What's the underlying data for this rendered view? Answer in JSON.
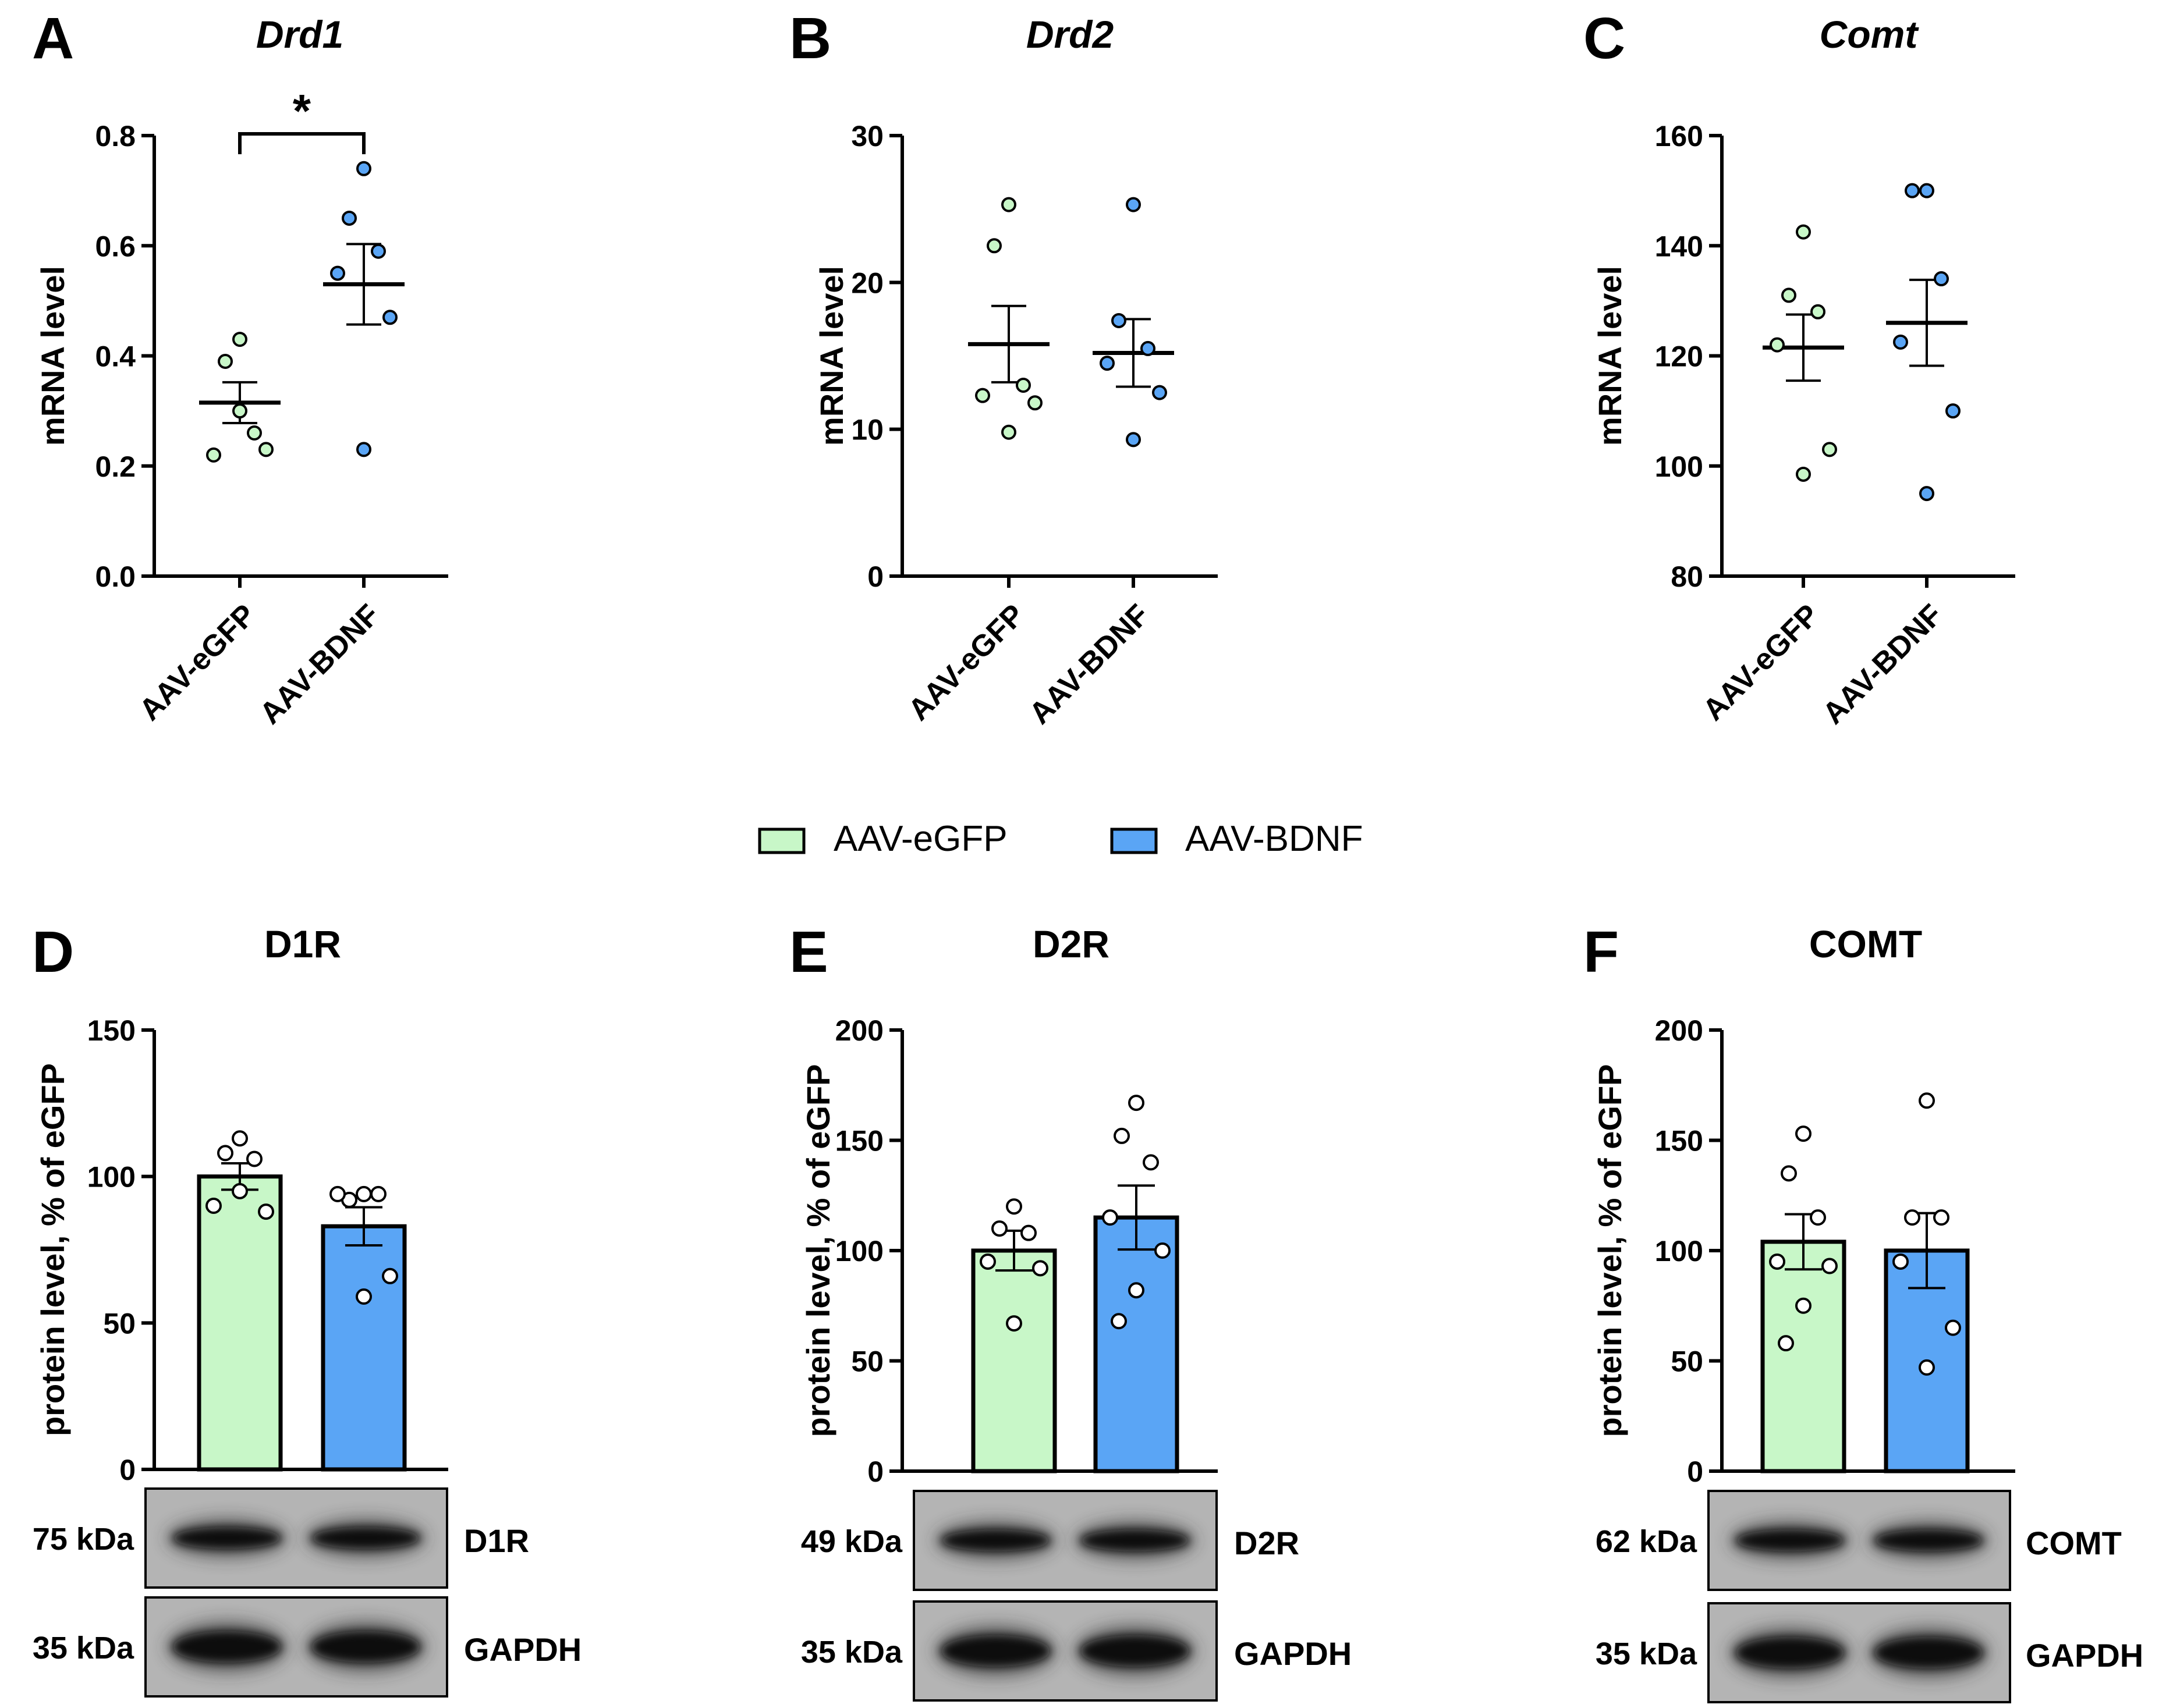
{
  "legend": {
    "items": [
      {
        "label": "AAV-eGFP",
        "color": "#c8f7c8"
      },
      {
        "label": "AAV-BDNF",
        "color": "#5aa5f5"
      }
    ]
  },
  "colors": {
    "egfp": "#c8f7c8",
    "bdnf": "#5aa5f5",
    "axis": "#000000"
  },
  "chart_data": [
    {
      "panel": "A",
      "type": "scatter",
      "title": "Drd1",
      "italic_title": true,
      "ylabel": "mRNA level",
      "ylim": [
        0,
        0.8
      ],
      "yticks": [
        "0.0",
        "0.2",
        "0.4",
        "0.6",
        "0.8"
      ],
      "categories": [
        "AAV-eGFP",
        "AAV-BDNF"
      ],
      "series": [
        {
          "name": "AAV-eGFP",
          "points": [
            0.43,
            0.39,
            0.26,
            0.22,
            0.23,
            0.3
          ],
          "mean": 0.315,
          "sem": 0.037
        },
        {
          "name": "AAV-BDNF",
          "points": [
            0.74,
            0.65,
            0.59,
            0.55,
            0.47,
            0.23
          ],
          "mean": 0.53,
          "sem": 0.073
        }
      ],
      "significance": "*"
    },
    {
      "panel": "B",
      "type": "scatter",
      "title": "Drd2",
      "italic_title": true,
      "ylabel": "mRNA level",
      "ylim": [
        0,
        30
      ],
      "yticks": [
        "0",
        "10",
        "20",
        "30"
      ],
      "categories": [
        "AAV-eGFP",
        "AAV-BDNF"
      ],
      "series": [
        {
          "name": "AAV-eGFP",
          "points": [
            25.3,
            22.5,
            13.0,
            12.3,
            11.8,
            9.8
          ],
          "mean": 15.8,
          "sem": 2.6
        },
        {
          "name": "AAV-BDNF",
          "points": [
            25.3,
            17.4,
            15.5,
            14.5,
            12.5,
            9.3
          ],
          "mean": 15.2,
          "sem": 2.3
        }
      ]
    },
    {
      "panel": "C",
      "type": "scatter",
      "title": "Comt",
      "italic_title": true,
      "ylabel": "mRNA level",
      "ylim": [
        80,
        160
      ],
      "yticks": [
        "80",
        "100",
        "120",
        "140",
        "160"
      ],
      "categories": [
        "AAV-eGFP",
        "AAV-BDNF"
      ],
      "series": [
        {
          "name": "AAV-eGFP",
          "points": [
            142.5,
            131,
            128,
            122,
            103,
            98.5
          ],
          "mean": 121.5,
          "sem": 6.0
        },
        {
          "name": "AAV-BDNF",
          "points": [
            150,
            150,
            134,
            122.5,
            110,
            95
          ],
          "mean": 126,
          "sem": 7.8
        }
      ]
    },
    {
      "panel": "D",
      "type": "bar",
      "title": "D1R",
      "italic_title": false,
      "ylabel": "protein level, % of eGFP",
      "ylim": [
        0,
        150
      ],
      "yticks": [
        "0",
        "50",
        "100",
        "150"
      ],
      "categories": [
        "AAV-eGFP",
        "AAV-BDNF"
      ],
      "series": [
        {
          "name": "AAV-eGFP",
          "mean": 100,
          "sem": 4.5,
          "points": [
            113,
            108,
            106,
            90,
            88,
            95
          ]
        },
        {
          "name": "AAV-BDNF",
          "mean": 83,
          "sem": 6.5,
          "points": [
            94,
            92,
            94,
            94,
            66,
            59
          ]
        }
      ],
      "blot": {
        "target_kda": "75 kDa",
        "target_label": "D1R",
        "loading_kda": "35 kDa",
        "loading_label": "GAPDH"
      }
    },
    {
      "panel": "E",
      "type": "bar",
      "title": "D2R",
      "italic_title": false,
      "ylabel": "protein level, % of eGFP",
      "ylim": [
        0,
        200
      ],
      "yticks": [
        "0",
        "50",
        "100",
        "150",
        "200"
      ],
      "categories": [
        "AAV-eGFP",
        "AAV-BDNF"
      ],
      "series": [
        {
          "name": "AAV-eGFP",
          "mean": 100,
          "sem": 9,
          "points": [
            120,
            110,
            108,
            95,
            92,
            67
          ]
        },
        {
          "name": "AAV-BDNF",
          "mean": 115,
          "sem": 14.5,
          "points": [
            167,
            152,
            140,
            115,
            100,
            82,
            68
          ]
        }
      ],
      "blot": {
        "target_kda": "49 kDa",
        "target_label": "D2R",
        "loading_kda": "35 kDa",
        "loading_label": "GAPDH"
      }
    },
    {
      "panel": "F",
      "type": "bar",
      "title": "COMT",
      "italic_title": false,
      "ylabel": "protein level, % of eGFP",
      "ylim": [
        0,
        200
      ],
      "yticks": [
        "0",
        "50",
        "100",
        "150",
        "200"
      ],
      "categories": [
        "AAV-eGFP",
        "AAV-BDNF"
      ],
      "series": [
        {
          "name": "AAV-eGFP",
          "mean": 104,
          "sem": 12.5,
          "points": [
            153,
            135,
            115,
            95,
            93,
            75,
            58
          ]
        },
        {
          "name": "AAV-BDNF",
          "mean": 100,
          "sem": 17,
          "points": [
            168,
            115,
            115,
            95,
            65,
            47
          ]
        }
      ],
      "blot": {
        "target_kda": "62 kDa",
        "target_label": "COMT",
        "loading_kda": "35 kDa",
        "loading_label": "GAPDH"
      }
    }
  ]
}
